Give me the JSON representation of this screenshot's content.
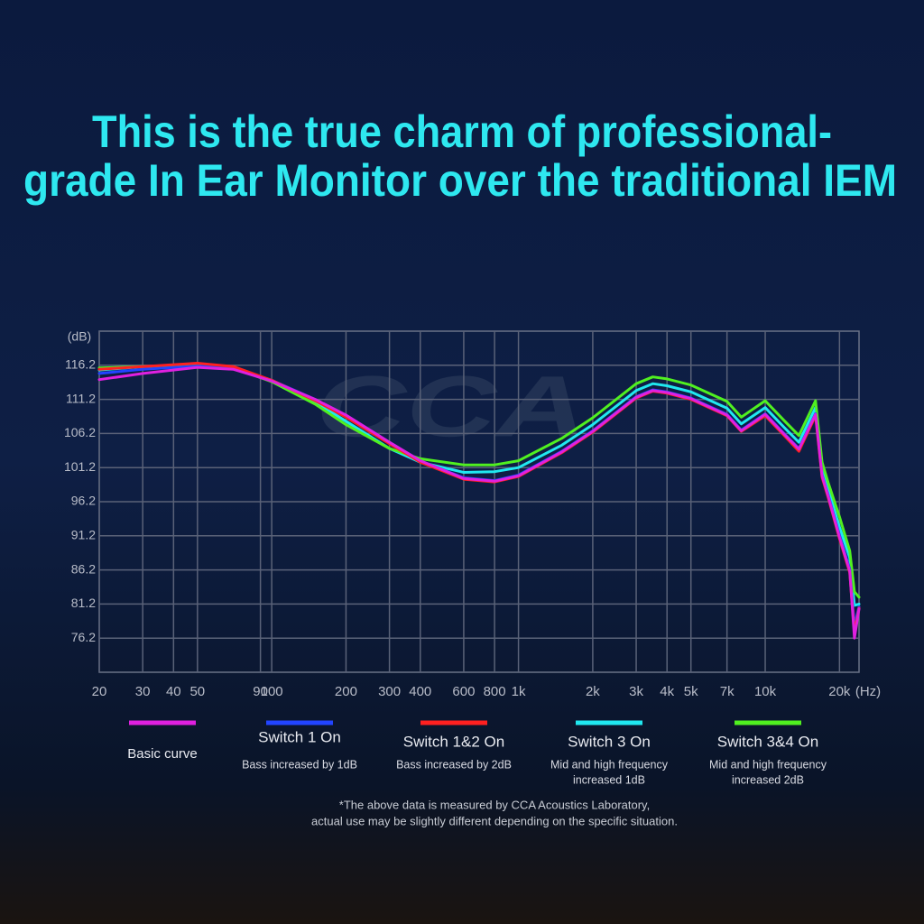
{
  "chart_data": {
    "type": "line",
    "title": [
      "This is the true charm of professional-",
      "grade In Ear Monitor over the traditional IEM"
    ],
    "watermark": "CCA",
    "y_label": "(dB)",
    "x_label": "(Hz)",
    "x_log": true,
    "grid": true,
    "xlim": [
      20,
      24000
    ],
    "ylim": [
      71.2,
      121.2
    ],
    "xticks": [
      20,
      30,
      40,
      50,
      90,
      100,
      200,
      300,
      400,
      600,
      800,
      {
        "value": 1000,
        "label": "1k"
      },
      {
        "value": 2000,
        "label": "2k"
      },
      {
        "value": 3000,
        "label": "3k"
      },
      {
        "value": 4000,
        "label": "4k"
      },
      {
        "value": 5000,
        "label": "5k"
      },
      {
        "value": 7000,
        "label": "7k"
      },
      {
        "value": 10000,
        "label": "10k"
      },
      {
        "value": 20000,
        "label": "20k"
      }
    ],
    "yticks": [
      76.2,
      81.2,
      86.2,
      91.2,
      96.2,
      101.2,
      106.2,
      111.2,
      116.2
    ],
    "x": [
      20,
      30,
      50,
      70,
      100,
      150,
      200,
      300,
      400,
      600,
      800,
      1000,
      1500,
      2000,
      3000,
      3500,
      4000,
      5000,
      7000,
      8000,
      10000,
      12000,
      13700,
      16000,
      17000,
      18000,
      20000,
      22000,
      23000,
      24000
    ],
    "series": [
      {
        "name": "Basic curve",
        "color": "#e020e0",
        "description": [],
        "values": [
          114.1,
          115.0,
          115.9,
          115.6,
          113.9,
          111.2,
          108.9,
          104.9,
          102.2,
          99.6,
          99.2,
          100.0,
          103.5,
          106.5,
          111.5,
          112.5,
          112.2,
          111.3,
          108.9,
          106.6,
          109.0,
          106.0,
          103.9,
          109.0,
          100.0,
          97.0,
          91.0,
          86.0,
          76.2,
          80.5
        ]
      },
      {
        "name": "Switch 1 On",
        "color": "#2244ff",
        "description": [
          "Bass increased by 1dB"
        ],
        "values": [
          115.0,
          115.6,
          116.1,
          115.8,
          114.0,
          111.2,
          108.9,
          104.9,
          102.2,
          99.7,
          99.3,
          100.1,
          103.6,
          106.6,
          111.6,
          112.6,
          112.3,
          111.4,
          109.0,
          106.7,
          109.1,
          106.1,
          104.0,
          109.1,
          100.2,
          97.2,
          91.3,
          86.3,
          78.0,
          80.8
        ]
      },
      {
        "name": "Switch 1&2 On",
        "color": "#ff2020",
        "description": [
          "Bass increased by 2dB"
        ],
        "values": [
          115.6,
          116.0,
          116.5,
          116.0,
          114.0,
          111.0,
          108.6,
          104.7,
          102.0,
          99.5,
          99.1,
          99.9,
          103.4,
          106.4,
          111.4,
          112.4,
          112.1,
          111.2,
          108.8,
          106.5,
          108.8,
          105.8,
          103.6,
          108.8,
          99.8,
          96.8,
          90.8,
          85.8,
          77.0,
          80.6
        ]
      },
      {
        "name": "Switch 3 On",
        "color": "#20e8f0",
        "description": [
          "Mid and high frequency",
          "increased 1dB"
        ],
        "values": [
          115.5,
          116.0,
          116.2,
          115.8,
          114.0,
          110.8,
          108.0,
          104.0,
          102.0,
          100.5,
          100.6,
          101.2,
          104.5,
          107.5,
          112.5,
          113.5,
          113.2,
          112.3,
          109.9,
          107.6,
          110.0,
          107.0,
          104.9,
          110.0,
          101.0,
          98.0,
          92.5,
          88.0,
          81.0,
          81.2
        ]
      },
      {
        "name": "Switch 3&4 On",
        "color": "#50f020",
        "description": [
          "Mid and high frequency",
          "increased 2dB"
        ],
        "values": [
          115.8,
          116.0,
          116.2,
          115.8,
          113.8,
          110.5,
          107.5,
          104.0,
          102.5,
          101.6,
          101.6,
          102.2,
          105.5,
          108.5,
          113.5,
          114.5,
          114.2,
          113.3,
          110.9,
          108.6,
          111.0,
          108.0,
          105.9,
          111.0,
          102.0,
          99.0,
          94.0,
          89.0,
          83.0,
          82.2
        ]
      }
    ],
    "footnote": [
      "*The above data is measured by CCA Acoustics Laboratory,",
      "actual use may be slightly different depending on the specific situation."
    ]
  }
}
